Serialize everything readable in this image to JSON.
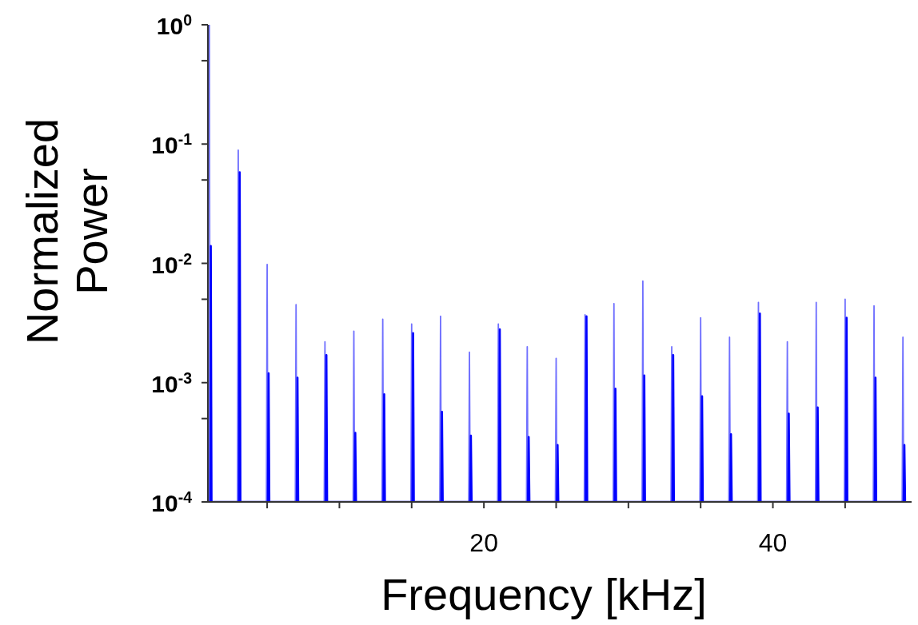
{
  "chart_data": {
    "type": "line",
    "xlabel": "Frequency [kHz]",
    "ylabel": "Normalized\nPower",
    "log": "y",
    "line_style": "solid",
    "xlim": [
      0.9,
      49.6
    ],
    "xticks": [
      {
        "value": 5,
        "label": null
      },
      {
        "value": 10,
        "label": null
      },
      {
        "value": 15,
        "label": null
      },
      20,
      {
        "value": 25,
        "label": null
      },
      {
        "value": 30,
        "label": null
      },
      {
        "value": 35,
        "label": null
      },
      40,
      {
        "value": 45,
        "label": null
      }
    ],
    "ylim": [
      0.0001,
      1
    ],
    "yticks": [
      {
        "value": 0.0001,
        "label": "10$^{-4}$"
      },
      {
        "value": 0.0005,
        "label": null
      },
      {
        "value": 0.001,
        "label": "10$^{-3}$"
      },
      {
        "value": 0.005,
        "label": null
      },
      {
        "value": 0.01,
        "label": "10$^{-2}$"
      },
      {
        "value": 0.05,
        "label": null
      },
      {
        "value": 0.1,
        "label": "10$^{-1}$"
      },
      {
        "value": 0.5,
        "label": null
      },
      {
        "value": 1,
        "label": "10$^{0}$"
      }
    ],
    "series": [
      {
        "color": "#7070ff",
        "x": [
          1,
          1.05,
          2.95,
          3,
          3.05,
          4.95,
          5,
          5.05,
          6.95,
          7,
          7.05,
          8.95,
          9,
          9.05,
          10.95,
          11,
          11.05,
          12.95,
          13,
          13.05,
          14.95,
          15,
          15.05,
          16.95,
          17,
          17.05,
          18.95,
          19,
          19.05,
          20.95,
          21,
          21.05,
          22.95,
          23,
          23.05,
          24.95,
          25,
          25.05,
          26.95,
          27,
          27.05,
          28.95,
          29,
          29.05,
          30.95,
          31,
          31.05,
          32.95,
          33,
          33.05,
          34.95,
          35,
          35.05,
          36.95,
          37,
          37.05,
          38.95,
          39,
          39.05,
          40.95,
          41,
          41.05,
          42.95,
          43,
          43.05,
          44.95,
          45,
          45.05,
          46.95,
          47,
          47.05,
          48.95,
          49,
          49.05
        ],
        "values": [
          1,
          0.0001,
          0.0001,
          0.089,
          0.0001,
          0.0001,
          0.0098,
          0.0001,
          0.0001,
          0.0045,
          0.0001,
          0.0001,
          0.0022,
          0.0001,
          0.0001,
          0.0027,
          0.0001,
          0.0001,
          0.0034,
          0.0001,
          0.0001,
          0.0031,
          0.0001,
          0.0001,
          0.0036,
          0.0001,
          0.0001,
          0.0018,
          0.0001,
          0.0001,
          0.0031,
          0.0001,
          0.0001,
          0.002,
          0.0001,
          0.0001,
          0.0016,
          0.0001,
          0.0001,
          0.0037,
          0.0001,
          0.0001,
          0.0046,
          0.0001,
          0.0001,
          0.0071,
          0.0001,
          0.0001,
          0.002,
          0.0001,
          0.0001,
          0.0035,
          0.0001,
          0.0001,
          0.0024,
          0.0001,
          0.0001,
          0.0047,
          0.0001,
          0.0001,
          0.0022,
          0.0001,
          0.0001,
          0.0047,
          0.0001,
          0.0001,
          0.005,
          0.0001,
          0.0001,
          0.0044,
          0.0001,
          0.0001,
          0.0024,
          0.0001
        ]
      },
      {
        "color": "#0000ff",
        "x": [
          1.05,
          1.1,
          1.15,
          3.05,
          3.1,
          3.15,
          5.05,
          5.1,
          5.15,
          7.05,
          7.1,
          7.15,
          9.05,
          9.1,
          9.15,
          11.05,
          11.1,
          11.15,
          13.05,
          13.1,
          13.15,
          15.05,
          15.1,
          15.15,
          17.05,
          17.1,
          17.15,
          19.05,
          19.1,
          19.15,
          21.05,
          21.1,
          21.15,
          23.05,
          23.1,
          23.15,
          25.05,
          25.1,
          25.15,
          27.05,
          27.1,
          27.15,
          29.05,
          29.1,
          29.15,
          31.05,
          31.1,
          31.15,
          33.05,
          33.1,
          33.15,
          35.05,
          35.1,
          35.15,
          37.05,
          37.1,
          37.15,
          39.05,
          39.1,
          39.15,
          41.05,
          41.1,
          41.15,
          43.05,
          43.1,
          43.15,
          45.05,
          45.1,
          45.15,
          47.05,
          47.1,
          47.15,
          49.05,
          49.1,
          49.15
        ],
        "values": [
          0.0001,
          0.014,
          0.0001,
          0.0001,
          0.058,
          0.0001,
          0.0001,
          0.0012,
          0.0001,
          0.0001,
          0.0011,
          0.0001,
          0.0001,
          0.0017,
          0.0001,
          0.0001,
          0.00038,
          0.0001,
          0.0001,
          0.0008,
          0.0001,
          0.0001,
          0.0026,
          0.0001,
          0.0001,
          0.00057,
          0.0001,
          0.0001,
          0.00036,
          0.0001,
          0.0001,
          0.0028,
          0.0001,
          0.0001,
          0.00035,
          0.0001,
          0.0001,
          0.0003,
          0.0001,
          0.0001,
          0.0036,
          0.0001,
          0.0001,
          0.00089,
          0.0001,
          0.0001,
          0.00115,
          0.0001,
          0.0001,
          0.0017,
          0.0001,
          0.0001,
          0.00077,
          0.0001,
          0.0001,
          0.00037,
          0.0001,
          0.0001,
          0.0038,
          0.0001,
          0.0001,
          0.00055,
          0.0001,
          0.0001,
          0.00062,
          0.0001,
          0.0001,
          0.0035,
          0.0001,
          0.0001,
          0.0011,
          0.0001,
          0.0001,
          0.0003,
          0.0001
        ]
      }
    ]
  }
}
